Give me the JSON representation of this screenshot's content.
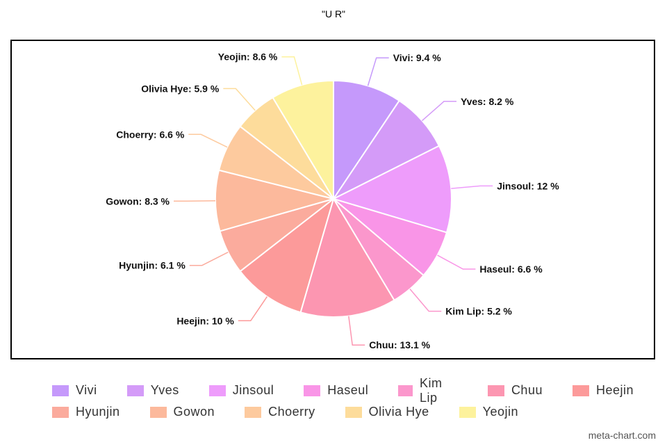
{
  "chart_data": {
    "type": "pie",
    "title": "\"U R\"",
    "slices": [
      {
        "label": "Vivi",
        "value": 9.4,
        "color": "#c599fb"
      },
      {
        "label": "Yves",
        "value": 8.2,
        "color": "#d49bf8"
      },
      {
        "label": "Jinsoul",
        "value": 12,
        "color": "#ee9cfb"
      },
      {
        "label": "Haseul",
        "value": 6.6,
        "color": "#f995e7"
      },
      {
        "label": "Kim Lip",
        "value": 5.2,
        "color": "#fb97cc"
      },
      {
        "label": "Chuu",
        "value": 13.1,
        "color": "#fc96b1"
      },
      {
        "label": "Heejin",
        "value": 10,
        "color": "#fc9a9a"
      },
      {
        "label": "Hyunjin",
        "value": 6.1,
        "color": "#fbab9d"
      },
      {
        "label": "Gowon",
        "value": 8.3,
        "color": "#fcb99c"
      },
      {
        "label": "Choerry",
        "value": 6.6,
        "color": "#fdca9e"
      },
      {
        "label": "Olivia Hye",
        "value": 5.9,
        "color": "#fddc9b"
      },
      {
        "label": "Yeojin",
        "value": 8.6,
        "color": "#fdf29d"
      }
    ],
    "legend_placement": "bottom"
  },
  "watermark": "meta-chart.com"
}
